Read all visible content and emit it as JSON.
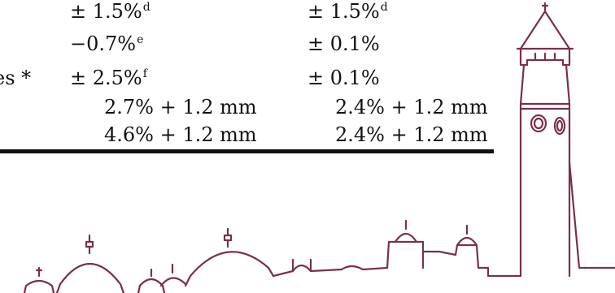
{
  "table": {
    "rows": [
      {
        "label": "",
        "col1": "± 1.5%",
        "col1_sup": "d",
        "col2": "± 1.5%",
        "col2_sup": "d"
      },
      {
        "label": "",
        "col1": "−0.7%",
        "col1_sup": "e",
        "col2": "± 0.1%",
        "col2_sup": ""
      },
      {
        "label": "es *",
        "col1": "± 2.5%",
        "col1_sup": "f",
        "col2": "± 0.1%",
        "col2_sup": ""
      },
      {
        "label": "",
        "col1": "2.7% + 1.2 mm",
        "col1_sup": "",
        "col2": "2.4% + 1.2 mm",
        "col2_sup": ""
      },
      {
        "label": "",
        "col1": "4.6% + 1.2 mm",
        "col1_sup": "",
        "col2": "2.4% + 1.2 mm",
        "col2_sup": ""
      }
    ]
  },
  "watermark": {
    "stroke_color": "#7a3048",
    "icon": "campus-skyline-clock-tower"
  }
}
